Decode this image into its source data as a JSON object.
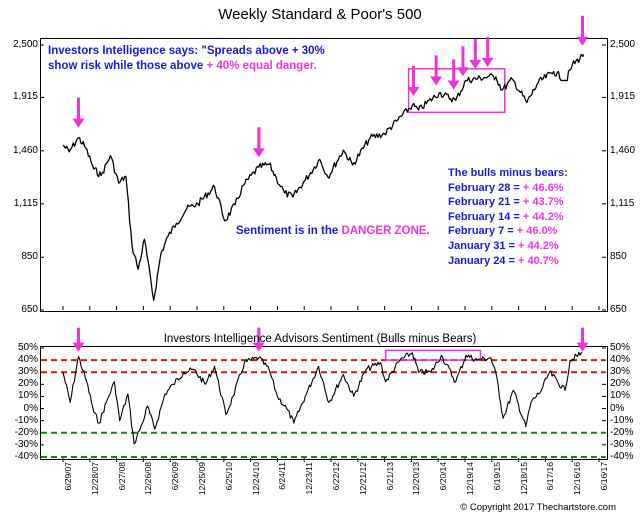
{
  "chart_data": [
    {
      "type": "line",
      "title": "Weekly Standard & Poor's 500",
      "yscale": "log",
      "ylim": [
        650,
        2500
      ],
      "ytick_labels": [
        "2,500",
        "1,915",
        "1,460",
        "1,115",
        "850",
        "650"
      ],
      "yticks": [
        2500,
        1915,
        1460,
        1115,
        850,
        650
      ],
      "series": [
        {
          "values_by_date": [
            [
              "2007-06-29",
              1503
            ],
            [
              "2007-08-10",
              1453
            ],
            [
              "2007-10-12",
              1561
            ],
            [
              "2007-11-30",
              1481
            ],
            [
              "2008-01-25",
              1330
            ],
            [
              "2008-03-14",
              1288
            ],
            [
              "2008-05-16",
              1425
            ],
            [
              "2008-07-11",
              1239
            ],
            [
              "2008-08-29",
              1282
            ],
            [
              "2008-10-10",
              899
            ],
            [
              "2008-11-21",
              800
            ],
            [
              "2009-01-02",
              931
            ],
            [
              "2009-03-06",
              683
            ],
            [
              "2009-04-24",
              866
            ],
            [
              "2009-06-12",
              946
            ],
            [
              "2009-08-07",
              1010
            ],
            [
              "2009-10-16",
              1087
            ],
            [
              "2009-12-31",
              1115
            ],
            [
              "2010-04-23",
              1217
            ],
            [
              "2010-07-02",
              1022
            ],
            [
              "2010-09-10",
              1110
            ],
            [
              "2010-11-05",
              1225
            ],
            [
              "2011-02-18",
              1343
            ],
            [
              "2011-04-29",
              1363
            ],
            [
              "2011-06-17",
              1271
            ],
            [
              "2011-08-12",
              1178
            ],
            [
              "2011-10-07",
              1155
            ],
            [
              "2011-12-30",
              1257
            ],
            [
              "2012-04-06",
              1398
            ],
            [
              "2012-06-01",
              1278
            ],
            [
              "2012-09-14",
              1465
            ],
            [
              "2012-11-16",
              1359
            ],
            [
              "2013-03-15",
              1560
            ],
            [
              "2013-06-21",
              1592
            ],
            [
              "2013-09-20",
              1710
            ],
            [
              "2013-12-27",
              1841
            ],
            [
              "2014-02-07",
              1797
            ],
            [
              "2014-06-27",
              1960
            ],
            [
              "2014-10-17",
              1886
            ],
            [
              "2014-12-26",
              2088
            ],
            [
              "2015-05-22",
              2126
            ],
            [
              "2015-07-17",
              2126
            ],
            [
              "2015-08-28",
              1988
            ],
            [
              "2015-11-06",
              2099
            ],
            [
              "2016-02-12",
              1865
            ],
            [
              "2016-04-29",
              2065
            ],
            [
              "2016-08-12",
              2184
            ],
            [
              "2016-11-04",
              2085
            ],
            [
              "2016-12-16",
              2258
            ],
            [
              "2017-02-24",
              2367
            ],
            [
              "2017-03-03",
              2383
            ]
          ]
        }
      ],
      "annotations": {
        "quote_line1": "Investors Intelligence says:  \"Spreads above + 30%",
        "quote_line2": "show risk while those above",
        "quote_line2_highlight": "+ 40% equal danger.",
        "danger_prefix": "Sentiment is in the",
        "danger_highlight": "DANGER ZONE.",
        "bulls_header": "The bulls minus bears:",
        "bulls_rows": [
          {
            "date": "February 28",
            "value": "+ 46.6%"
          },
          {
            "date": "February 21",
            "value": "+ 43.7%"
          },
          {
            "date": "February 14",
            "value": "+ 44.2%"
          },
          {
            "date": "February 7",
            "value": "+ 46.0%"
          },
          {
            "date": "January 31",
            "value": "+ 44.2%"
          },
          {
            "date": "January 24",
            "value": "+ 40.7%"
          }
        ]
      },
      "highlight_rect": {
        "from": "2013-12-01",
        "to": "2015-09-15",
        "y_low": 1775,
        "y_high": 2215
      },
      "arrow_dates": [
        "2007-10-12",
        "2011-02-18",
        "2014-01-03",
        "2014-06-06",
        "2014-10-03",
        "2014-12-05",
        "2015-02-27",
        "2015-05-22",
        "2017-02-24"
      ],
      "colors": {
        "line": "#000000",
        "arrow": "#ee33dd",
        "highlight": "#ee33dd",
        "text_blue": "#1a1adc",
        "text_magenta": "#ee33dd"
      }
    },
    {
      "type": "line",
      "title": "Investors Intelligence Advisors Sentiment (Bulls minus Bears)",
      "ylim": [
        -40,
        50
      ],
      "yticks": [
        50,
        40,
        30,
        20,
        10,
        0,
        -10,
        -20,
        -30,
        -40
      ],
      "ytick_labels": [
        "50%",
        "40%",
        "30%",
        "20%",
        "10%",
        "0%",
        "-10%",
        "-20%",
        "-30%",
        "-40%"
      ],
      "reference_lines": [
        {
          "y": 40,
          "color": "#dd1111",
          "style": "dashed"
        },
        {
          "y": 30,
          "color": "#dd1111",
          "style": "dashed"
        },
        {
          "y": -20,
          "color": "#118811",
          "style": "dashed"
        },
        {
          "y": -40,
          "color": "#118811",
          "style": "dashed"
        }
      ],
      "x_tick_labels": [
        "6/29/07",
        "12/28/07",
        "6/27/08",
        "12/26/08",
        "6/26/09",
        "12/25/09",
        "6/25/10",
        "12/24/10",
        "6/24/11",
        "12/23/11",
        "6/22/12",
        "12/21/12",
        "6/21/13",
        "12/20/13",
        "6/20/14",
        "12/19/14",
        "6/19/15",
        "12/18/15",
        "6/17/16",
        "12/16/16",
        "6/16/17"
      ],
      "x_ticks": [
        "2007-06-29",
        "2007-12-28",
        "2008-06-27",
        "2008-12-26",
        "2009-06-26",
        "2009-12-25",
        "2010-06-25",
        "2010-12-24",
        "2011-06-24",
        "2011-12-23",
        "2012-06-22",
        "2012-12-21",
        "2013-06-21",
        "2013-12-20",
        "2014-06-20",
        "2014-12-19",
        "2015-06-19",
        "2015-12-18",
        "2016-06-17",
        "2016-12-16",
        "2017-06-16"
      ],
      "series": [
        {
          "values_by_date": [
            [
              "2007-06-29",
              30
            ],
            [
              "2007-08-17",
              5
            ],
            [
              "2007-10-12",
              43
            ],
            [
              "2007-12-07",
              22
            ],
            [
              "2008-01-25",
              -3
            ],
            [
              "2008-02-29",
              -12
            ],
            [
              "2008-04-18",
              5
            ],
            [
              "2008-06-13",
              22
            ],
            [
              "2008-07-18",
              -10
            ],
            [
              "2008-09-12",
              12
            ],
            [
              "2008-10-24",
              -29
            ],
            [
              "2008-12-19",
              -12
            ],
            [
              "2009-01-23",
              2
            ],
            [
              "2009-03-13",
              -17
            ],
            [
              "2009-05-22",
              12
            ],
            [
              "2009-07-17",
              20
            ],
            [
              "2009-09-25",
              30
            ],
            [
              "2009-12-04",
              32
            ],
            [
              "2010-02-19",
              20
            ],
            [
              "2010-04-23",
              35
            ],
            [
              "2010-07-09",
              -5
            ],
            [
              "2010-08-27",
              10
            ],
            [
              "2010-11-12",
              38
            ],
            [
              "2011-02-18",
              42
            ],
            [
              "2011-04-29",
              32
            ],
            [
              "2011-06-24",
              10
            ],
            [
              "2011-08-26",
              0
            ],
            [
              "2011-10-14",
              -12
            ],
            [
              "2011-12-30",
              10
            ],
            [
              "2012-03-30",
              35
            ],
            [
              "2012-06-08",
              5
            ],
            [
              "2012-09-14",
              28
            ],
            [
              "2012-11-23",
              10
            ],
            [
              "2013-02-15",
              32
            ],
            [
              "2013-05-24",
              38
            ],
            [
              "2013-06-28",
              22
            ],
            [
              "2013-10-04",
              40
            ],
            [
              "2013-12-27",
              46
            ],
            [
              "2014-02-07",
              30
            ],
            [
              "2014-05-02",
              30
            ],
            [
              "2014-07-11",
              44
            ],
            [
              "2014-10-17",
              22
            ],
            [
              "2014-12-26",
              44
            ],
            [
              "2015-03-13",
              40
            ],
            [
              "2015-06-12",
              42
            ],
            [
              "2015-07-24",
              25
            ],
            [
              "2015-09-04",
              -8
            ],
            [
              "2015-11-13",
              15
            ],
            [
              "2016-02-05",
              -15
            ],
            [
              "2016-03-11",
              5
            ],
            [
              "2016-05-20",
              15
            ],
            [
              "2016-07-15",
              30
            ],
            [
              "2016-10-28",
              15
            ],
            [
              "2016-12-02",
              40
            ],
            [
              "2017-02-24",
              46
            ]
          ]
        }
      ],
      "highlight_rect": {
        "from": "2013-06-28",
        "to": "2015-04-03",
        "y_low": 40,
        "y_high": 48
      },
      "arrow_dates": [
        "2007-10-12",
        "2011-02-18",
        "2017-02-24"
      ],
      "colors": {
        "line": "#000000",
        "arrow": "#ee33dd",
        "highlight": "#ee33dd"
      }
    }
  ],
  "copyright": "© Copyright 2017 Thechartstore.com"
}
